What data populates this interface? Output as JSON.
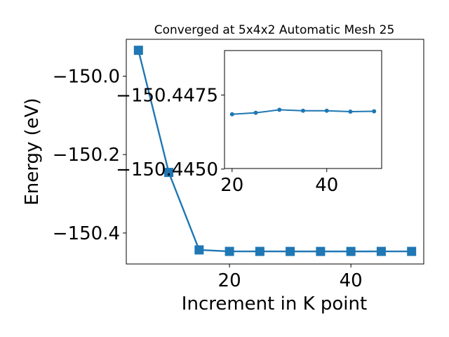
{
  "chart_data": [
    {
      "type": "line",
      "title": "Converged at 5x4x2 Automatic Mesh 25",
      "xlabel": "Increment in K point",
      "ylabel": "Energy (eV)",
      "x": [
        5,
        10,
        15,
        20,
        25,
        30,
        35,
        40,
        45,
        50
      ],
      "series": [
        {
          "marker": "square",
          "values": [
            -149.934,
            -150.2455,
            -150.4431,
            -150.4469,
            -150.4469,
            -150.447,
            -150.447,
            -150.447,
            -150.4469,
            -150.4469
          ]
        }
      ],
      "x_ticks": [
        20,
        40
      ],
      "y_ticks": [
        -150.4,
        -150.2,
        -150.0
      ],
      "x_tick_labels": [
        "20",
        "40"
      ],
      "y_tick_labels": [
        "−150.4",
        "−150.2",
        "−150.0"
      ],
      "xlim": [
        3,
        52
      ],
      "ylim": [
        -150.479,
        -149.906
      ],
      "grid": false,
      "color": "#1f77b4"
    },
    {
      "type": "line",
      "title": "",
      "x": [
        20,
        25,
        30,
        35,
        40,
        45,
        50
      ],
      "series": [
        {
          "marker": "circle",
          "values": [
            -150.44685,
            -150.4469,
            -150.447,
            -150.44697,
            -150.44697,
            -150.44694,
            -150.44695
          ]
        }
      ],
      "x_ticks": [
        20,
        40
      ],
      "y_ticks": [
        -150.445,
        -150.4475
      ],
      "x_tick_labels": [
        "20",
        "40"
      ],
      "y_tick_labels": [
        "−150.4450",
        "−150.4475"
      ],
      "xlim": [
        18.4,
        51.6
      ],
      "ylim": [
        -150.44502,
        -150.449
      ],
      "grid": false,
      "color": "#1f77b4"
    }
  ]
}
